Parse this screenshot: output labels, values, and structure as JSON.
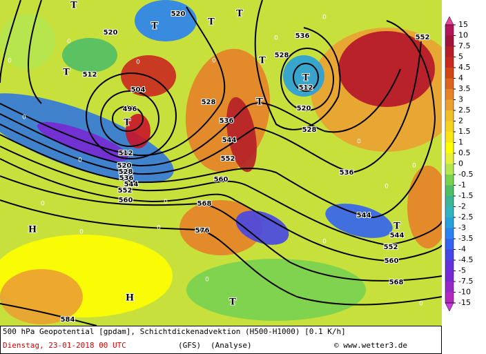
{
  "map": {
    "contour_labels": [
      "520",
      "520",
      "536",
      "528",
      "512",
      "504",
      "496",
      "528",
      "536",
      "544",
      "552",
      "512",
      "520",
      "528",
      "536",
      "560",
      "568",
      "576",
      "512",
      "520",
      "528",
      "536",
      "544",
      "552",
      "560",
      "544",
      "544",
      "552",
      "560",
      "568",
      "584",
      "552"
    ],
    "low_labels": [
      "T",
      "T",
      "T",
      "T",
      "T",
      "T",
      "T",
      "T",
      "T",
      "T",
      "T"
    ],
    "high_labels": [
      "H",
      "H"
    ],
    "zero_labels": [
      "0",
      "0",
      "0",
      "0",
      "0",
      "0",
      "0",
      "0",
      "0",
      "0",
      "0",
      "0",
      "0",
      "0",
      "0",
      "0",
      "0",
      "0"
    ]
  },
  "colorbar": {
    "labels": [
      "15",
      "10",
      "7.5",
      "5",
      "4.5",
      "4",
      "3.5",
      "3",
      "2.5",
      "2",
      "1.5",
      "1",
      "0.5",
      "0",
      "-0.5",
      "-1",
      "-1.5",
      "-2",
      "-2.5",
      "-3",
      "-3.5",
      "-4",
      "-4.5",
      "-5",
      "-7.5",
      "-10",
      "-15"
    ],
    "colors": [
      "#b4145a",
      "#a0143c",
      "#b41e28",
      "#c8281e",
      "#d24614",
      "#dc641e",
      "#e68228",
      "#eba032",
      "#f0be28",
      "#f5d21e",
      "#fae614",
      "#ffff00",
      "#e6f03c",
      "#b4e650",
      "#78d250",
      "#50be64",
      "#3cb496",
      "#32b4be",
      "#28a0dc",
      "#2882f0",
      "#3264f0",
      "#4646e6",
      "#6432dc",
      "#7828d2",
      "#9628c8",
      "#b428be"
    ],
    "top_color": "#e8449c",
    "bottom_color": "#c83cdc"
  },
  "footer": {
    "description": "500 hPa Geopotential [gpdam], Schichtdickenadvektion (H500-H1000) [0.1 K/h]",
    "date": "Dienstag, 23-01-2018  00 UTC",
    "model": "(GFS)",
    "run": "(Analyse)",
    "credit": "© www.wetter3.de"
  }
}
